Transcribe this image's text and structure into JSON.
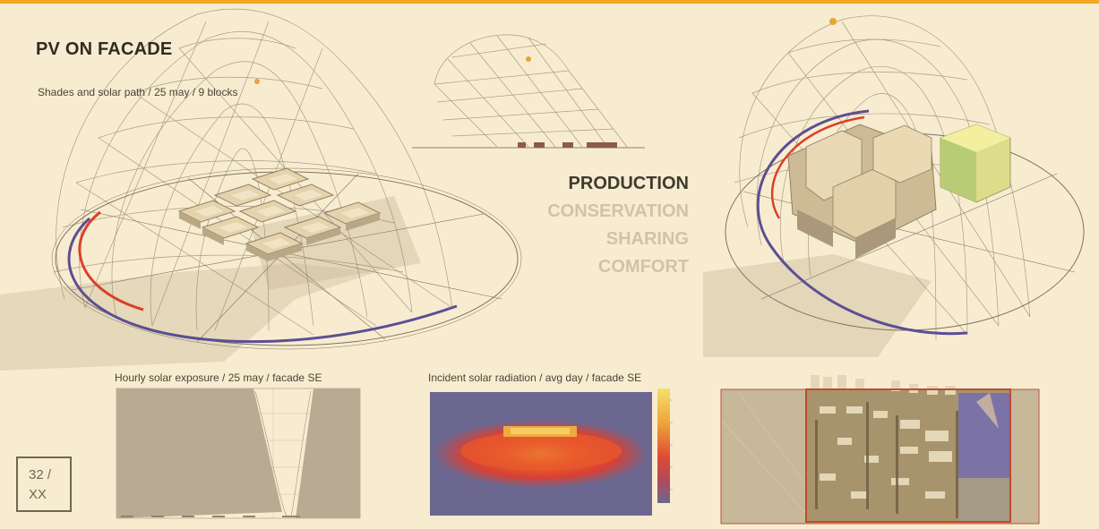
{
  "slide": {
    "title": "PV ON FACADE",
    "subtitle": "Shades and solar path / 25 may  / 9 blocks",
    "themes": [
      {
        "label": "PRODUCTION",
        "active": true
      },
      {
        "label": "CONSERVATION",
        "active": false
      },
      {
        "label": "SHARING",
        "active": false
      },
      {
        "label": "COMFORT",
        "active": false
      }
    ],
    "page_number": "32 /",
    "page_total": "XX"
  },
  "panels": {
    "hourly_exposure": {
      "caption": "Hourly solar exposure / 25 may  / facade SE"
    },
    "incident_radiation": {
      "caption": "Incident solar radiation / avg day / facade SE"
    }
  },
  "colors": {
    "background": "#f8ecd0",
    "accent_border": "#f2a623",
    "active_theme": "#3f3a30",
    "inactive_theme": "#d0c3a6",
    "sun_path_red": "#d8412a",
    "sun_path_blue": "#5b4f94",
    "heatmap_low": "#6b6790",
    "heatmap_high": "#f5e06a"
  }
}
